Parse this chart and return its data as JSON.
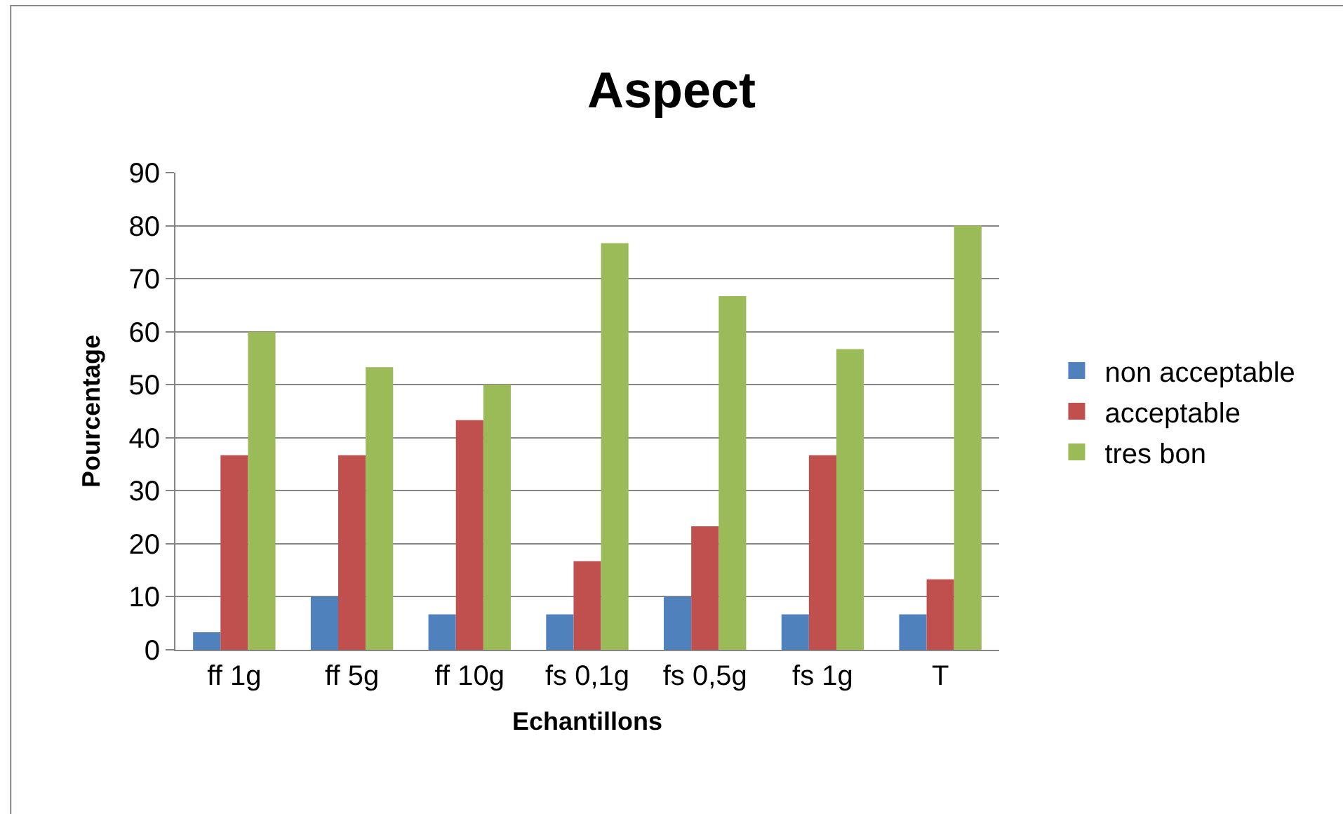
{
  "chart_data": {
    "type": "bar",
    "title": "Aspect",
    "xlabel": "Echantillons",
    "ylabel": "Pourcentage",
    "categories": [
      "ff 1g",
      "ff 5g",
      "ff 10g",
      "fs 0,1g",
      "fs 0,5g",
      "fs 1g",
      "T"
    ],
    "series": [
      {
        "name": "non acceptable",
        "color": "#4f81bd",
        "values": [
          3.3,
          10,
          6.7,
          6.7,
          10,
          6.7,
          6.7
        ]
      },
      {
        "name": "acceptable",
        "color": "#c0504d",
        "values": [
          36.7,
          36.7,
          43.3,
          16.7,
          23.3,
          36.7,
          13.3
        ]
      },
      {
        "name": "tres bon",
        "color": "#9bbb59",
        "values": [
          60,
          53.3,
          50,
          76.7,
          66.7,
          56.7,
          80
        ]
      }
    ],
    "ylim": [
      0,
      90
    ],
    "yticks": [
      0,
      10,
      20,
      30,
      40,
      50,
      60,
      70,
      80,
      90
    ],
    "grid": "y",
    "legend": "right"
  }
}
